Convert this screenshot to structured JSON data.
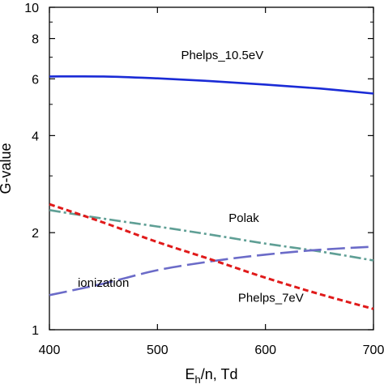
{
  "chart_data": {
    "type": "line",
    "x_label": "E",
    "x_label_sub": "h",
    "x_label_rest": "/n, Td",
    "ylabel": "G-value",
    "y_scale": "log",
    "xlim": [
      400,
      700
    ],
    "ylim": [
      1,
      10
    ],
    "x_ticks": [
      "400",
      "500",
      "600",
      "700"
    ],
    "y_ticks": [
      {
        "value": 1,
        "label": "1"
      },
      {
        "value": 2,
        "label": "2"
      },
      {
        "value": 4,
        "label": "4"
      },
      {
        "value": 6,
        "label": "6"
      },
      {
        "value": 8,
        "label": "8"
      },
      {
        "value": 10,
        "label": "10"
      }
    ],
    "y_minor_ticks": [
      3,
      5,
      7,
      9
    ],
    "grid": false,
    "series": [
      {
        "name": "Phelps_10.5eV",
        "color": "#1a2bd6",
        "style": "solid",
        "x": [
          400,
          450,
          500,
          550,
          600,
          650,
          700
        ],
        "values": [
          6.1,
          6.1,
          6.02,
          5.9,
          5.76,
          5.6,
          5.4
        ]
      },
      {
        "name": "Polak",
        "color": "#5f9f95",
        "style": "dashdot",
        "x": [
          400,
          450,
          500,
          550,
          600,
          650,
          700
        ],
        "values": [
          2.35,
          2.21,
          2.09,
          1.97,
          1.85,
          1.75,
          1.64
        ]
      },
      {
        "name": "ionization",
        "color": "#6b6bc8",
        "style": "longdash",
        "x": [
          400,
          450,
          500,
          550,
          600,
          650,
          700
        ],
        "values": [
          1.28,
          1.39,
          1.53,
          1.63,
          1.71,
          1.77,
          1.81
        ]
      },
      {
        "name": "Phelps_7eV",
        "color": "#e01a1a",
        "style": "dashed",
        "x": [
          400,
          450,
          500,
          550,
          600,
          650,
          700
        ],
        "values": [
          2.45,
          2.15,
          1.87,
          1.65,
          1.45,
          1.29,
          1.16
        ]
      }
    ],
    "annotations": [
      {
        "text": "Phelps_10.5eV",
        "x": 560,
        "y": 6.9
      },
      {
        "text": "Polak",
        "x": 580,
        "y": 2.16
      },
      {
        "text": "ionization",
        "x": 450,
        "y": 1.36
      },
      {
        "text": "Phelps_7eV",
        "x": 605,
        "y": 1.22
      }
    ]
  }
}
